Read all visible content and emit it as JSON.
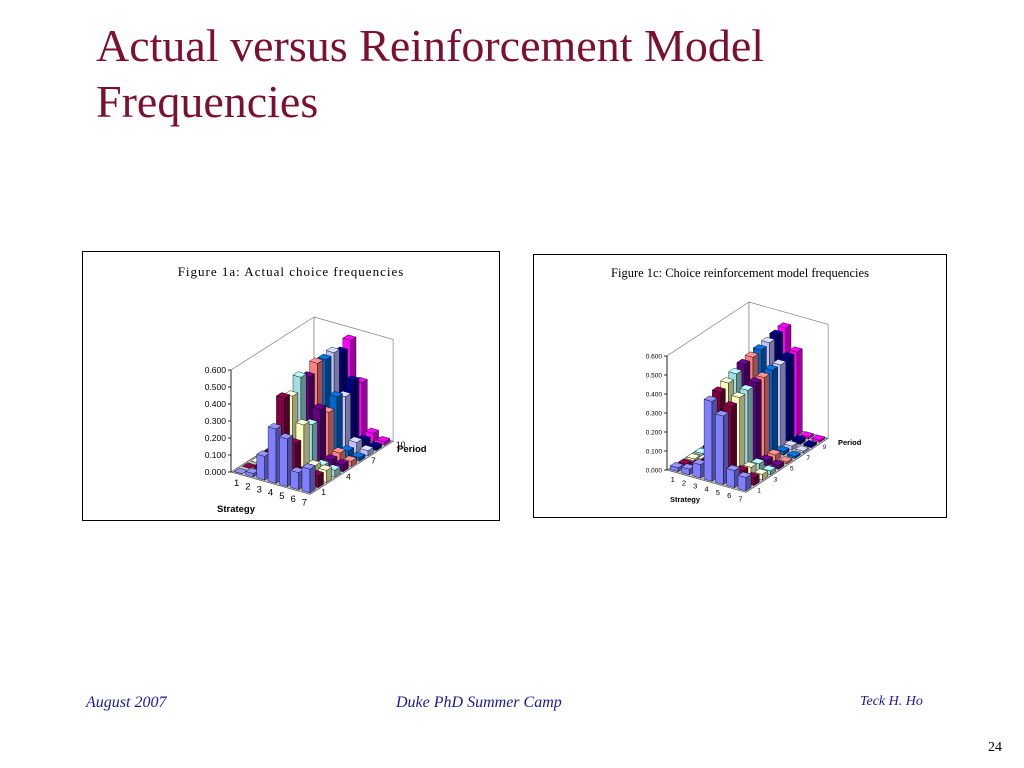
{
  "slide": {
    "title": "Actual versus Reinforcement Model Frequencies",
    "footer_left": "August 2007",
    "footer_center": "Duke PhD Summer Camp",
    "footer_right": "Teck H. Ho",
    "page_number": "24"
  },
  "chart_data": [
    {
      "type": "bar",
      "style": "3d-column",
      "title": "Figure 1a: Actual choice frequencies",
      "xlabel": "Strategy",
      "zlabel": "Period",
      "categories": [
        "1",
        "2",
        "3",
        "4",
        "5",
        "6",
        "7"
      ],
      "periods": [
        1,
        2,
        3,
        4,
        5,
        6,
        7,
        8,
        9,
        10
      ],
      "period_tick_labels": [
        "1",
        "4",
        "7",
        "10"
      ],
      "ylim": [
        0,
        0.6
      ],
      "yticks": [
        "0.000",
        "0.100",
        "0.200",
        "0.300",
        "0.400",
        "0.500",
        "0.600"
      ],
      "series": [
        {
          "period": 1,
          "color": "#8080ff",
          "values": [
            0.0,
            0.02,
            0.14,
            0.32,
            0.28,
            0.1,
            0.14
          ]
        },
        {
          "period": 2,
          "color": "#800040",
          "values": [
            0.0,
            0.02,
            0.13,
            0.47,
            0.22,
            0.08,
            0.07
          ]
        },
        {
          "period": 3,
          "color": "#ffffc0",
          "values": [
            0.0,
            0.0,
            0.1,
            0.45,
            0.3,
            0.08,
            0.07
          ]
        },
        {
          "period": 4,
          "color": "#a0e0e0",
          "values": [
            0.0,
            0.0,
            0.1,
            0.53,
            0.27,
            0.05,
            0.04
          ]
        },
        {
          "period": 5,
          "color": "#600080",
          "values": [
            0.0,
            0.0,
            0.08,
            0.5,
            0.33,
            0.05,
            0.04
          ]
        },
        {
          "period": 6,
          "color": "#ff8080",
          "values": [
            0.0,
            0.0,
            0.06,
            0.55,
            0.28,
            0.06,
            0.03
          ]
        },
        {
          "period": 7,
          "color": "#0066cc",
          "values": [
            0.0,
            0.0,
            0.05,
            0.54,
            0.34,
            0.04,
            0.02
          ]
        },
        {
          "period": 8,
          "color": "#c0c0ff",
          "values": [
            0.0,
            0.0,
            0.04,
            0.55,
            0.31,
            0.06,
            0.03
          ]
        },
        {
          "period": 9,
          "color": "#000080",
          "values": [
            0.0,
            0.0,
            0.04,
            0.52,
            0.37,
            0.04,
            0.02
          ]
        },
        {
          "period": 10,
          "color": "#ff00ff",
          "values": [
            0.0,
            0.0,
            0.03,
            0.56,
            0.33,
            0.05,
            0.02
          ]
        }
      ]
    },
    {
      "type": "bar",
      "style": "3d-column",
      "title": "Figure 1c: Choice reinforcement model frequencies",
      "xlabel": "Strategy",
      "zlabel": "Period",
      "categories": [
        "1",
        "2",
        "3",
        "4",
        "5",
        "6",
        "7"
      ],
      "periods": [
        1,
        2,
        3,
        4,
        5,
        6,
        7,
        8,
        9,
        10
      ],
      "period_tick_labels": [
        "1",
        "3",
        "5",
        "7",
        "9"
      ],
      "ylim": [
        0,
        0.6
      ],
      "yticks": [
        "0.000",
        "0.100",
        "0.200",
        "0.300",
        "0.400",
        "0.500",
        "0.600"
      ],
      "series": [
        {
          "period": 1,
          "color": "#8080ff",
          "values": [
            0.02,
            0.03,
            0.07,
            0.42,
            0.36,
            0.09,
            0.07
          ]
        },
        {
          "period": 2,
          "color": "#800040",
          "values": [
            0.01,
            0.02,
            0.06,
            0.44,
            0.38,
            0.06,
            0.04
          ]
        },
        {
          "period": 3,
          "color": "#ffffc0",
          "values": [
            0.01,
            0.02,
            0.05,
            0.46,
            0.4,
            0.05,
            0.03
          ]
        },
        {
          "period": 4,
          "color": "#a0e0e0",
          "values": [
            0.01,
            0.01,
            0.04,
            0.48,
            0.41,
            0.04,
            0.02
          ]
        },
        {
          "period": 5,
          "color": "#600080",
          "values": [
            0.01,
            0.01,
            0.03,
            0.5,
            0.42,
            0.03,
            0.02
          ]
        },
        {
          "period": 6,
          "color": "#ff8080",
          "values": [
            0.01,
            0.01,
            0.03,
            0.51,
            0.42,
            0.03,
            0.01
          ]
        },
        {
          "period": 7,
          "color": "#0066cc",
          "values": [
            0.0,
            0.01,
            0.02,
            0.52,
            0.43,
            0.02,
            0.01
          ]
        },
        {
          "period": 8,
          "color": "#c0c0ff",
          "values": [
            0.0,
            0.01,
            0.02,
            0.53,
            0.43,
            0.02,
            0.01
          ]
        },
        {
          "period": 9,
          "color": "#000080",
          "values": [
            0.0,
            0.0,
            0.02,
            0.54,
            0.44,
            0.02,
            0.01
          ]
        },
        {
          "period": 10,
          "color": "#ff00ff",
          "values": [
            0.0,
            0.0,
            0.02,
            0.55,
            0.44,
            0.01,
            0.01
          ]
        }
      ]
    }
  ]
}
